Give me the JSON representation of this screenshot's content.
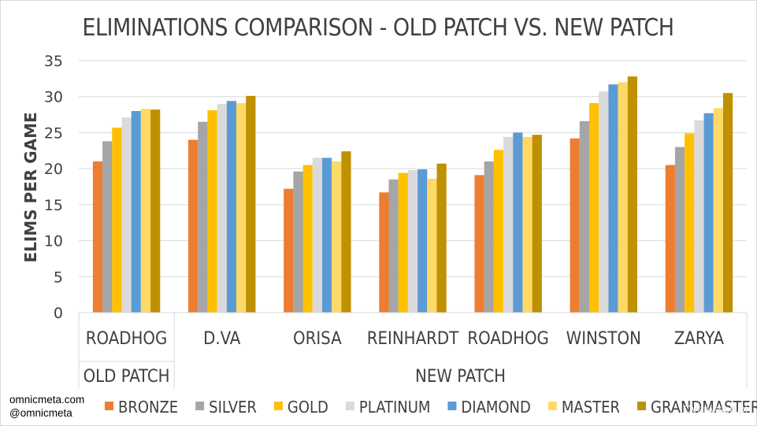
{
  "chart_data": {
    "type": "bar",
    "title": "ELIMINATIONS COMPARISON - OLD PATCH VS. NEW PATCH",
    "ylabel": "ELIMS PER GAME",
    "ylim": [
      0,
      35
    ],
    "yticks": [
      0,
      5,
      10,
      15,
      20,
      25,
      30,
      35
    ],
    "categories": [
      "ROADHOG",
      "D.VA",
      "ORISA",
      "REINHARDT",
      "ROADHOG",
      "WINSTON",
      "ZARYA"
    ],
    "groups": [
      {
        "label": "OLD PATCH",
        "categories": [
          "ROADHOG"
        ]
      },
      {
        "label": "NEW PATCH",
        "categories": [
          "D.VA",
          "ORISA",
          "REINHARDT",
          "ROADHOG",
          "WINSTON",
          "ZARYA"
        ]
      }
    ],
    "series": [
      {
        "name": "BRONZE",
        "color": "#ed7d31",
        "values": [
          21.0,
          24.0,
          17.2,
          16.7,
          19.1,
          24.2,
          20.5
        ]
      },
      {
        "name": "SILVER",
        "color": "#a5a5a5",
        "values": [
          23.8,
          26.5,
          19.6,
          18.5,
          21.0,
          26.6,
          23.0
        ]
      },
      {
        "name": "GOLD",
        "color": "#ffc000",
        "values": [
          25.7,
          28.1,
          20.5,
          19.4,
          22.6,
          29.1,
          24.9
        ]
      },
      {
        "name": "PLATINUM",
        "color": "#dadada",
        "values": [
          27.1,
          29.0,
          21.5,
          19.8,
          24.4,
          30.7,
          26.7
        ]
      },
      {
        "name": "DIAMOND",
        "color": "#5b9bd5",
        "values": [
          28.0,
          29.4,
          21.5,
          19.9,
          25.0,
          31.7,
          27.7
        ]
      },
      {
        "name": "MASTER",
        "color": "#ffd966",
        "values": [
          28.3,
          29.1,
          21.0,
          18.6,
          24.4,
          32.0,
          28.4
        ]
      },
      {
        "name": "GRANDMASTER",
        "color": "#bf9000",
        "values": [
          28.2,
          30.1,
          22.4,
          20.7,
          24.7,
          32.8,
          30.5
        ]
      }
    ],
    "grid": true,
    "legend_position": "bottom"
  },
  "credits": {
    "site": "omnicmeta.com",
    "handle": "@omnicmeta"
  },
  "watermark": "Overwatch.pl"
}
